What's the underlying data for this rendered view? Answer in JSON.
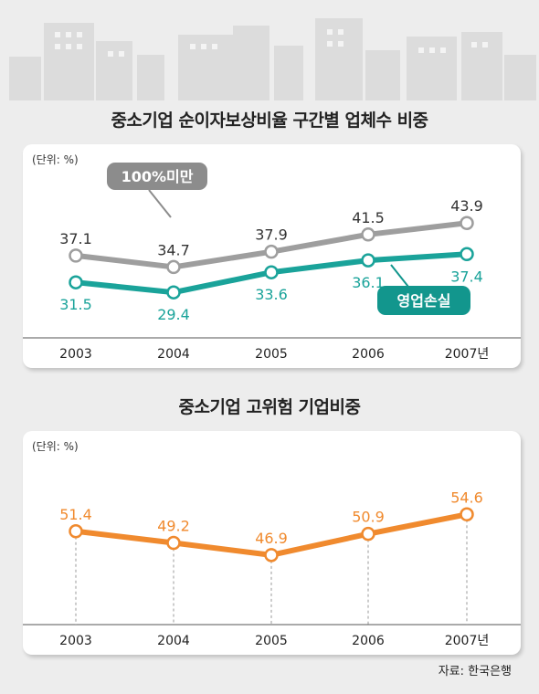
{
  "source": "자료: 한국은행",
  "chart_data": [
    {
      "type": "line",
      "title": "중소기업 순이자보상비율 구간별 업체수 비중",
      "unit": "(단위: %)",
      "categories": [
        "2003",
        "2004",
        "2005",
        "2006",
        "2007년"
      ],
      "ylim": [
        26,
        47
      ],
      "series": [
        {
          "name": "100%미만",
          "values": [
            37.1,
            34.7,
            37.9,
            41.5,
            43.9
          ],
          "color": "#9e9e9e",
          "label_bg": "#8c8c8c",
          "label_color": "#333333"
        },
        {
          "name": "영업손실",
          "values": [
            31.5,
            29.4,
            33.6,
            36.1,
            37.4
          ],
          "color": "#1aa39a",
          "label_bg": "#12968d",
          "label_color": "#1aa39a"
        }
      ]
    },
    {
      "type": "line",
      "title": "중소기업 고위험 기업비중",
      "unit": "(단위: %)",
      "categories": [
        "2003",
        "2004",
        "2005",
        "2006",
        "2007년"
      ],
      "ylim": [
        41,
        60
      ],
      "series": [
        {
          "values": [
            51.4,
            49.2,
            46.9,
            50.9,
            54.6
          ],
          "color": "#f08a2e",
          "label_color": "#f08a2e"
        }
      ]
    }
  ]
}
